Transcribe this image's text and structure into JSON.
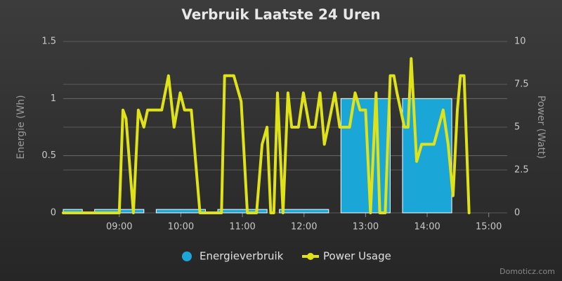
{
  "chart_data": {
    "type": "combo",
    "title": "Verbruik Laatste 24 Uren",
    "y_label": "Energie (Wh)",
    "y2_label": "Power (Watt)",
    "credits": "Domoticz.com",
    "xlim": [
      8.09,
      15.3
    ],
    "xticks": [
      {
        "value": 9,
        "label": "09:00"
      },
      {
        "value": 10,
        "label": "10:00"
      },
      {
        "value": 11,
        "label": "11:00"
      },
      {
        "value": 12,
        "label": "12:00"
      },
      {
        "value": 13,
        "label": "13:00"
      },
      {
        "value": 14,
        "label": "14:00"
      },
      {
        "value": 15,
        "label": "15:00"
      }
    ],
    "ylim": [
      0,
      1.5
    ],
    "yticks": [
      0,
      0.5,
      1,
      1.5
    ],
    "y2lim": [
      0,
      10
    ],
    "y2ticks": [
      0,
      2.5,
      5,
      7.5,
      10
    ],
    "grid": true,
    "series": [
      {
        "name": "Energieverbruik",
        "type": "column",
        "color": "#1aa7d8",
        "x": [
          8,
          9,
          10,
          11,
          12,
          13,
          14
        ],
        "values": [
          0.03,
          0.03,
          0.03,
          0.03,
          0.03,
          1,
          1
        ]
      },
      {
        "name": "Power Usage",
        "type": "line",
        "axis": "y2",
        "color": "#e0e218",
        "x": [
          8.09,
          9.0,
          9.06,
          9.11,
          9.23,
          9.31,
          9.4,
          9.46,
          9.69,
          9.8,
          9.89,
          9.99,
          10.06,
          10.17,
          10.31,
          10.66,
          10.71,
          10.86,
          10.98,
          11.08,
          11.23,
          11.32,
          11.4,
          11.46,
          11.51,
          11.57,
          11.66,
          11.74,
          11.8,
          11.91,
          11.99,
          12.09,
          12.18,
          12.26,
          12.33,
          12.39,
          12.5,
          12.58,
          12.74,
          12.83,
          12.91,
          13.0,
          13.08,
          13.17,
          13.23,
          13.32,
          13.4,
          13.46,
          13.51,
          13.63,
          13.69,
          13.74,
          13.83,
          13.91,
          14.11,
          14.26,
          14.34,
          14.42,
          14.49,
          14.54,
          14.6,
          14.68
        ],
        "values": [
          0,
          0,
          6,
          5.5,
          0,
          6,
          5,
          6,
          6,
          8,
          5,
          7,
          6,
          6,
          0,
          0,
          8,
          8,
          6.5,
          0,
          0,
          4,
          5,
          0,
          0,
          7,
          0,
          7,
          5,
          5,
          7,
          5,
          5,
          7,
          4,
          5,
          7,
          5,
          5,
          7,
          6,
          6,
          0,
          7,
          0,
          0,
          8,
          8,
          7,
          5,
          5,
          9,
          3,
          4,
          4,
          6,
          4,
          1,
          6,
          8,
          8,
          0
        ]
      }
    ]
  }
}
